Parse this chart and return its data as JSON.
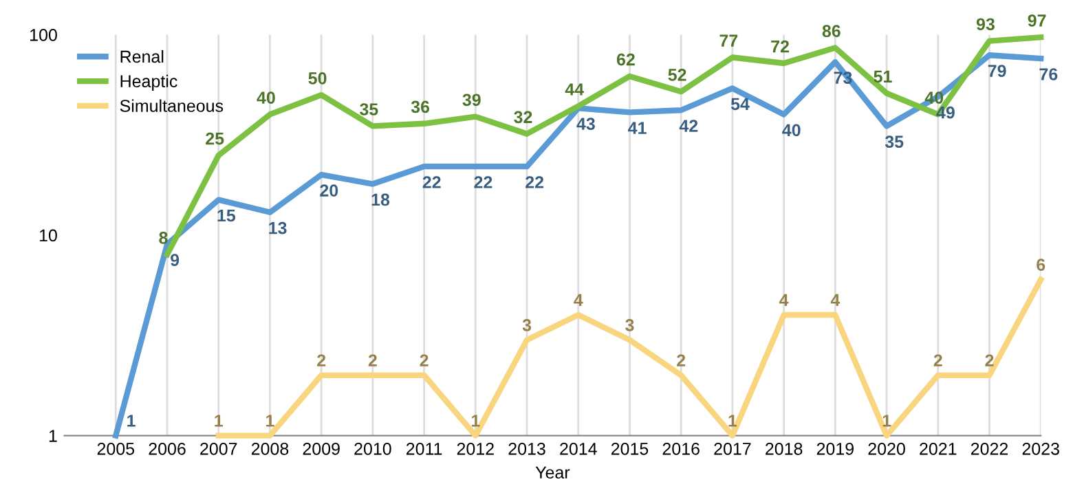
{
  "chart_data": {
    "type": "line",
    "xlabel": "Year",
    "categories": [
      "2005",
      "2006",
      "2007",
      "2008",
      "2009",
      "2010",
      "2011",
      "2012",
      "2013",
      "2014",
      "2015",
      "2016",
      "2017",
      "2018",
      "2019",
      "2020",
      "2021",
      "2022",
      "2023"
    ],
    "series": [
      {
        "name": "Renal",
        "color": "#5b9bd5",
        "values": [
          1,
          9,
          15,
          13,
          20,
          18,
          22,
          22,
          22,
          43,
          41,
          42,
          54,
          40,
          73,
          35,
          49,
          79,
          76
        ]
      },
      {
        "name": "Heaptic",
        "color": "#7dc142",
        "values": [
          null,
          8,
          25,
          40,
          50,
          35,
          36,
          39,
          32,
          44,
          62,
          52,
          77,
          72,
          86,
          51,
          40,
          93,
          97
        ]
      },
      {
        "name": "Simultaneous",
        "color": "#f8d57e",
        "values": [
          null,
          null,
          1,
          1,
          2,
          2,
          2,
          1,
          3,
          4,
          3,
          2,
          1,
          4,
          4,
          1,
          2,
          2,
          6
        ]
      }
    ],
    "log": true,
    "ylim": [
      1,
      100
    ],
    "yticks": [
      1,
      10,
      100
    ],
    "grid": "x",
    "legend": "top left",
    "data_labels": true,
    "marker": "none",
    "line_style": "solid"
  }
}
